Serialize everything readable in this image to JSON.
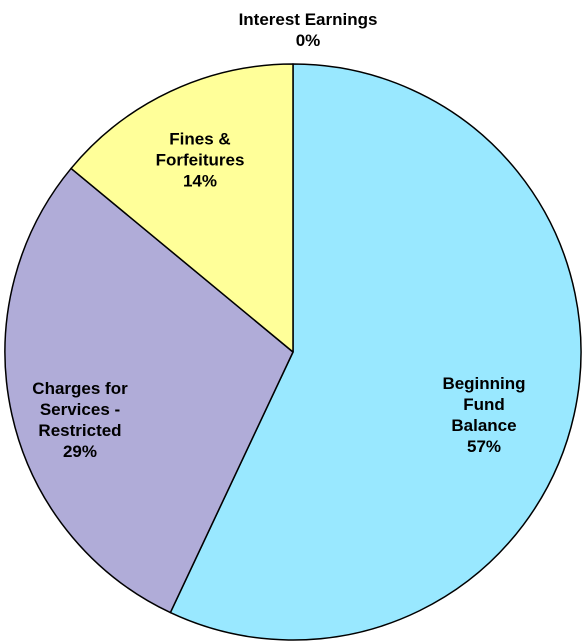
{
  "chart_data": {
    "type": "pie",
    "categories": [
      "Interest Earnings",
      "Beginning Fund\nBalance",
      "Charges for\nServices -\nRestricted",
      "Fines &\nForfeitures"
    ],
    "values": [
      0,
      57,
      29,
      14
    ],
    "value_labels": [
      "0%",
      "57%",
      "29%",
      "14%"
    ],
    "colors": [
      "#9999ff",
      "#99e8ff",
      "#b0acd8",
      "#ffff99"
    ]
  }
}
